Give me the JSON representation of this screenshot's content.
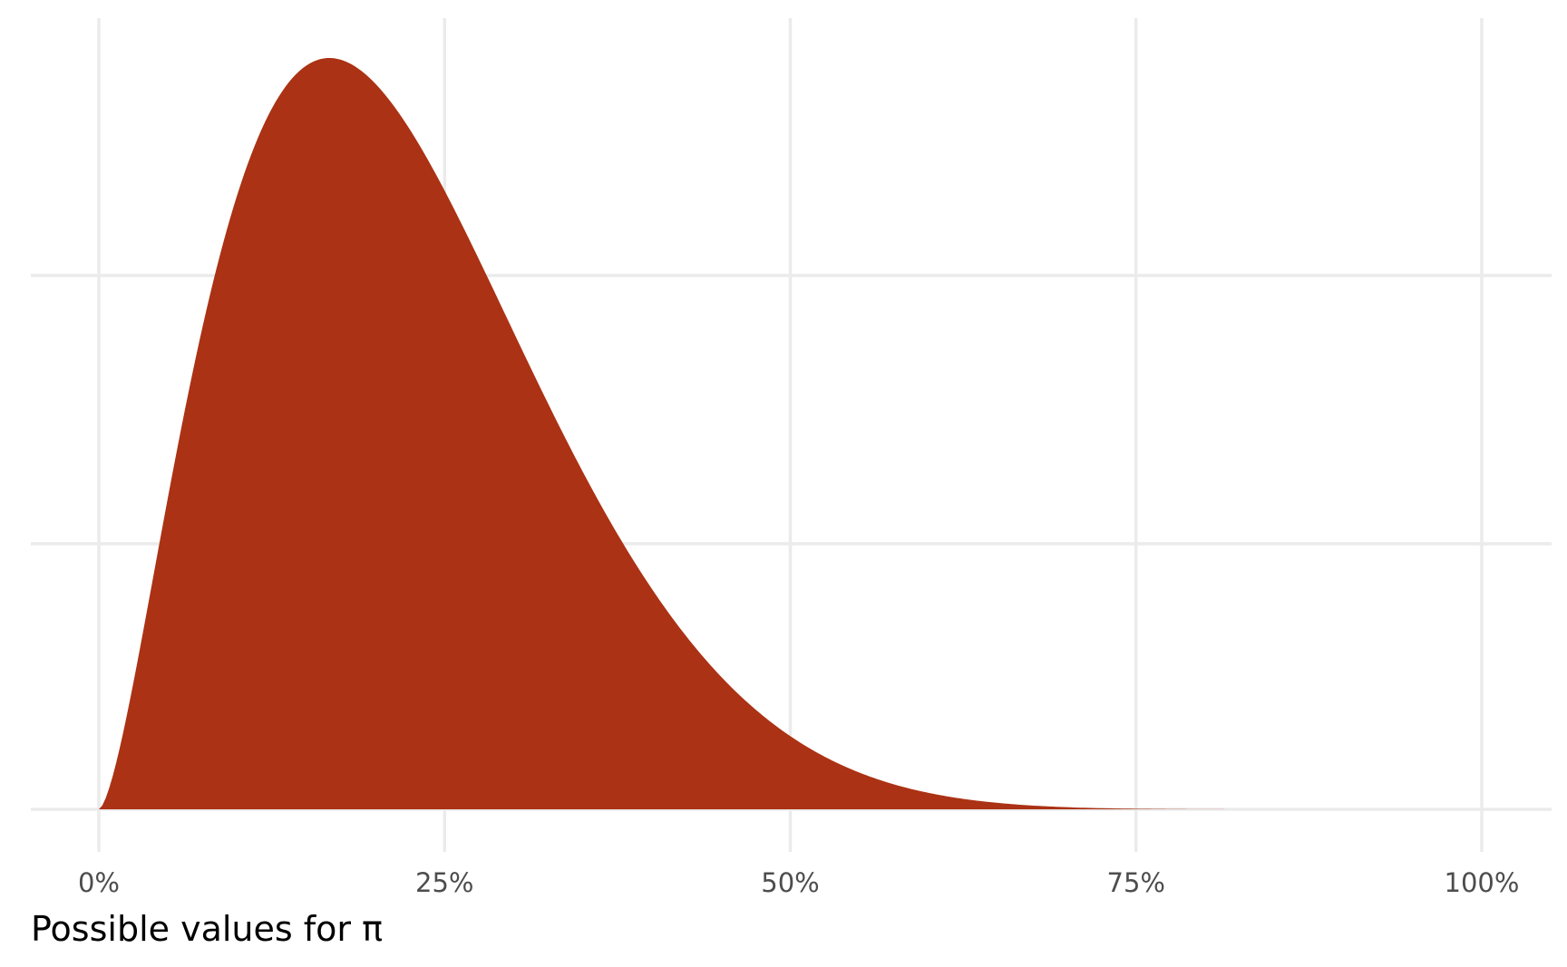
{
  "chart_data": {
    "type": "area",
    "distribution": "Beta",
    "shape1": 2.6,
    "shape2": 9,
    "x": [
      0,
      0.02,
      0.04,
      0.06,
      0.08,
      0.1,
      0.12,
      0.14,
      0.16,
      0.18,
      0.2,
      0.22,
      0.24,
      0.26,
      0.28,
      0.3,
      0.32,
      0.34,
      0.36,
      0.38,
      0.4,
      0.42,
      0.44,
      0.46,
      0.48,
      0.5,
      0.52,
      0.54,
      0.56,
      0.58,
      0.6,
      0.62,
      0.64,
      0.66,
      0.68,
      0.7,
      0.72,
      0.74,
      0.76,
      0.78,
      0.8,
      0.82,
      0.84,
      0.86,
      0.88,
      0.9,
      0.92,
      0.94,
      0.96,
      0.98,
      1.0
    ],
    "xlim": [
      0,
      1
    ],
    "xticks": [
      0,
      0.25,
      0.5,
      0.75,
      1
    ],
    "xtick_labels": [
      "0%",
      "25%",
      "50%",
      "75%",
      "100%"
    ],
    "xlabel": "Possible values for π",
    "ylabel": "",
    "fill_color": "#AB3214",
    "grid": true,
    "show_y_tick_labels": false,
    "legend": "none"
  }
}
